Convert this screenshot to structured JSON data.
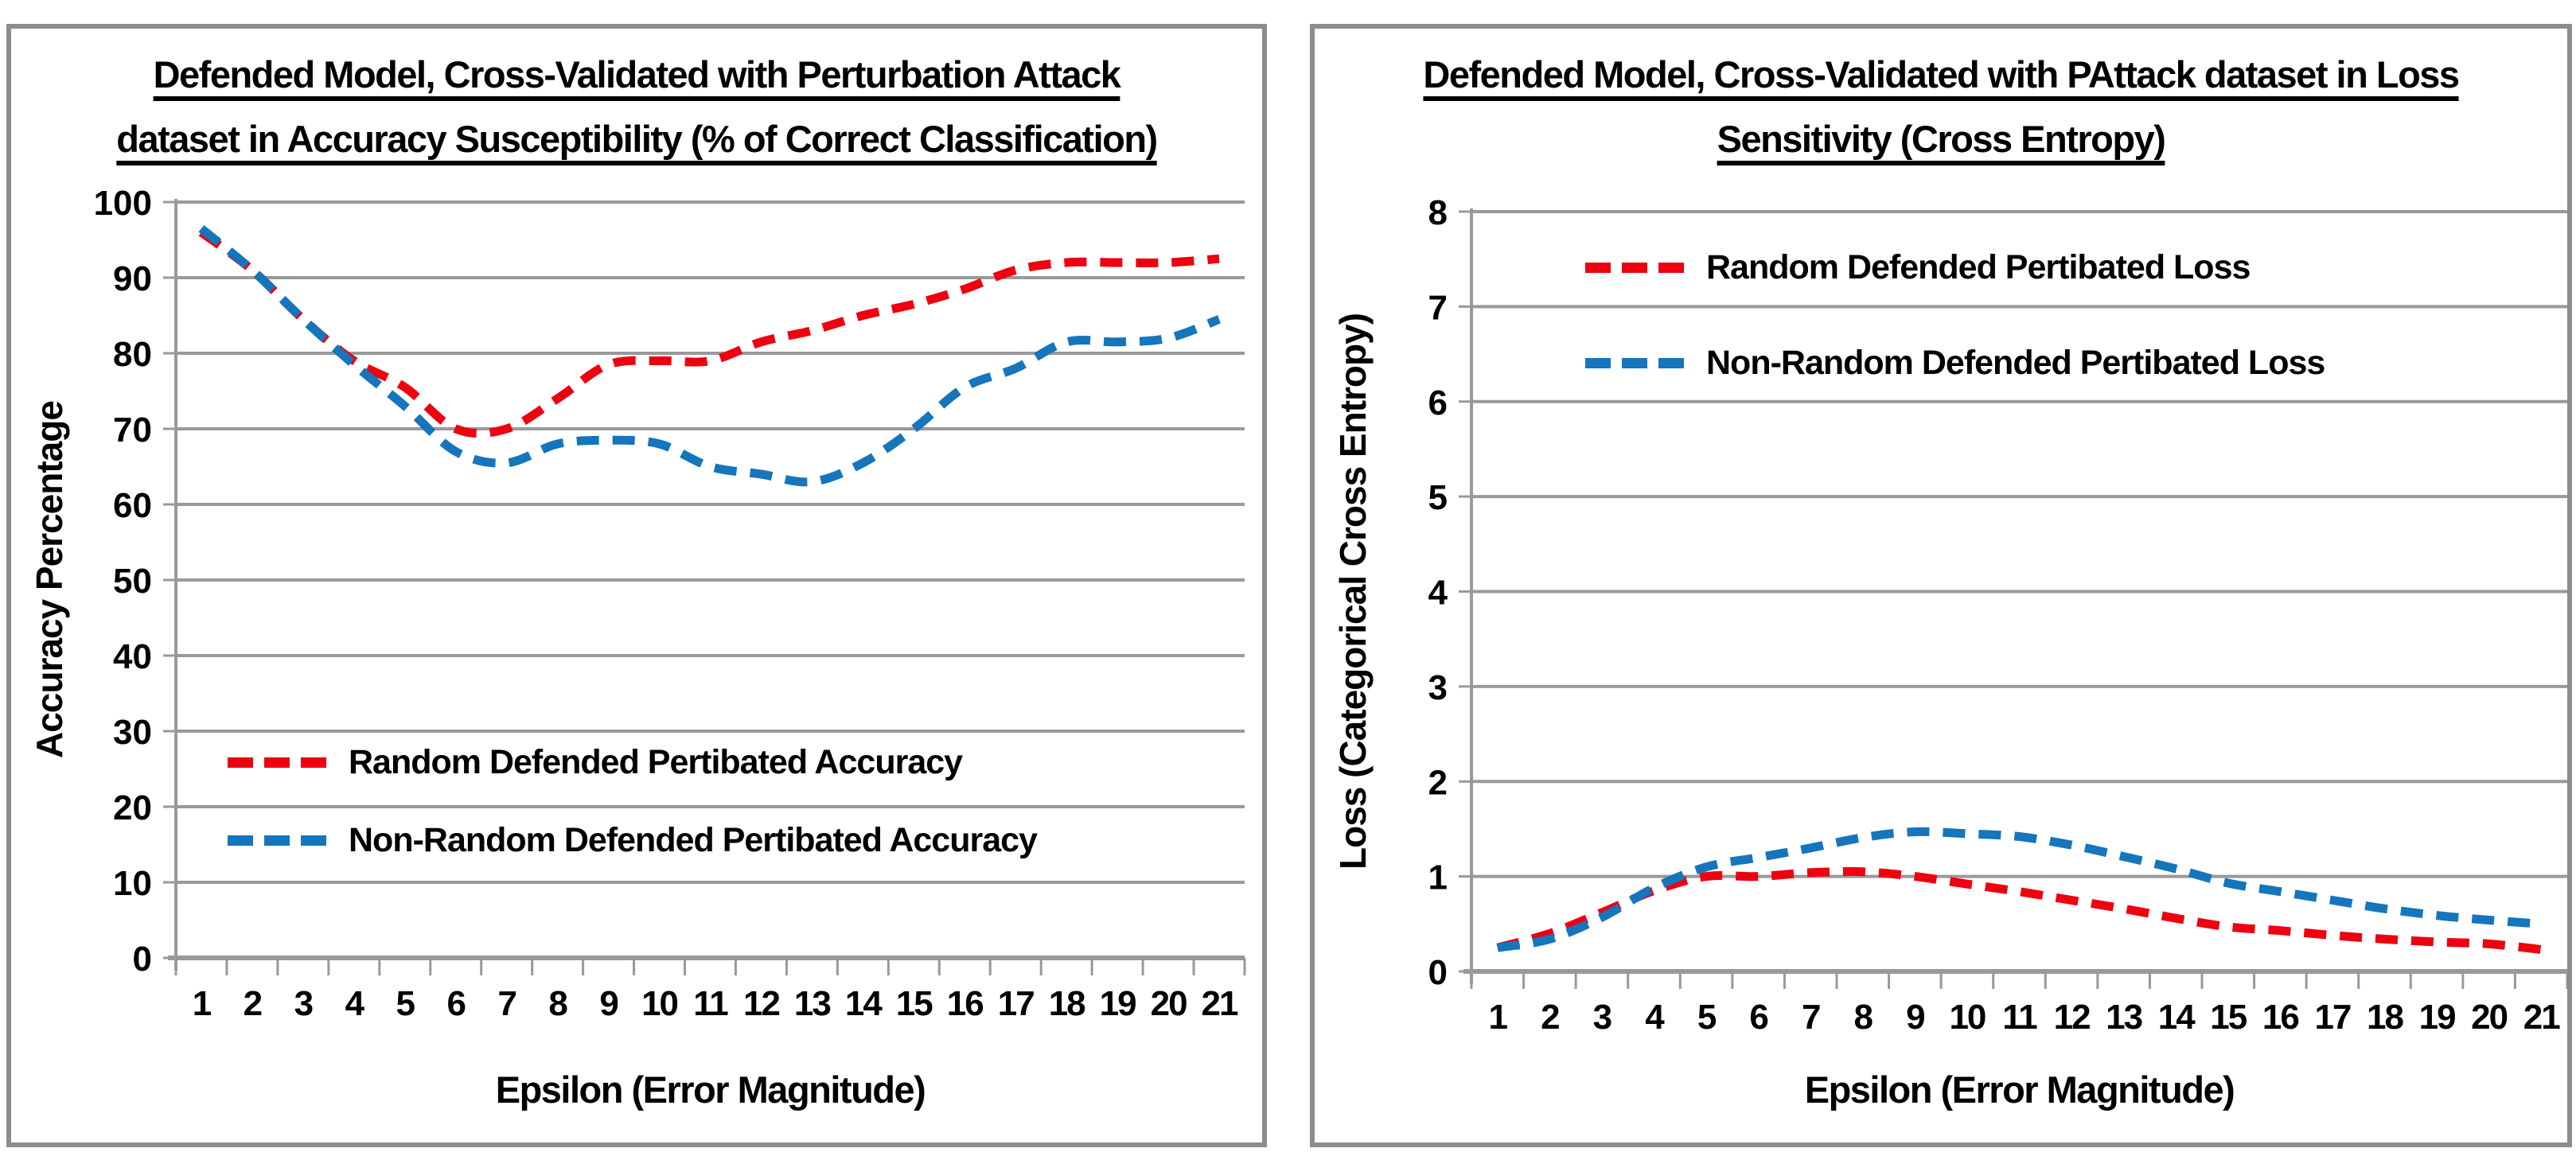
{
  "styles": {
    "grid_color": "#999999",
    "axis_color": "#999999",
    "border_color": "#8c8c8c",
    "red": "#ee0011",
    "blue": "#1575bd",
    "text_color": "#000000"
  },
  "chart_data": [
    {
      "type": "line",
      "title_lines": [
        "Defended Model, Cross-Validated with Perturbation Attack",
        "dataset in Accuracy Susceptibility (% of Correct Classification)"
      ],
      "ylabel": "Accuracy Percentage",
      "xlabel": "Epsilon (Error Magnitude)",
      "x": [
        1,
        2,
        3,
        4,
        5,
        6,
        7,
        8,
        9,
        10,
        11,
        12,
        13,
        14,
        15,
        16,
        17,
        18,
        19,
        20,
        21
      ],
      "ylim": [
        0,
        100
      ],
      "ystep": 10,
      "grid": "horizontal",
      "legend_position": "inside-lower-left",
      "line_style": "dashed-smooth",
      "series": [
        {
          "name": "Random Defended Pertibated Accuracy",
          "color": "#ee0011",
          "values": [
            96,
            91,
            84.5,
            79,
            75.5,
            70,
            70,
            74,
            78.5,
            79,
            79,
            81.5,
            83,
            85,
            86.5,
            88.5,
            91,
            92,
            92,
            92,
            92.5
          ]
        },
        {
          "name": "Non-Random Defended Pertibated Accuracy",
          "color": "#1575bd",
          "values": [
            96.5,
            91,
            84.5,
            78.5,
            73,
            67,
            65.5,
            68,
            68.5,
            68,
            65,
            64,
            63,
            65.5,
            70,
            75.5,
            78,
            81.5,
            81.5,
            82,
            84.5
          ]
        }
      ]
    },
    {
      "type": "line",
      "title_lines": [
        "Defended Model, Cross-Validated with PAttack dataset in Loss",
        "Sensitivity (Cross Entropy)"
      ],
      "ylabel": "Loss (Categorical Cross Entropy)",
      "xlabel": "Epsilon (Error Magnitude)",
      "x": [
        1,
        2,
        3,
        4,
        5,
        6,
        7,
        8,
        9,
        10,
        11,
        12,
        13,
        14,
        15,
        16,
        17,
        18,
        19,
        20,
        21
      ],
      "ylim": [
        0,
        8
      ],
      "ystep": 1,
      "grid": "horizontal",
      "legend_position": "inside-upper-left",
      "line_style": "dashed-smooth",
      "series": [
        {
          "name": "Random Defended Pertibated Loss",
          "color": "#ee0011",
          "values": [
            0.25,
            0.4,
            0.62,
            0.85,
            1.0,
            1.0,
            1.04,
            1.05,
            1.0,
            0.92,
            0.84,
            0.75,
            0.66,
            0.56,
            0.47,
            0.43,
            0.38,
            0.34,
            0.31,
            0.29,
            0.23
          ]
        },
        {
          "name": "Non-Random Defended Pertibated Loss",
          "color": "#1575bd",
          "values": [
            0.25,
            0.34,
            0.57,
            0.88,
            1.1,
            1.2,
            1.3,
            1.41,
            1.47,
            1.45,
            1.42,
            1.33,
            1.21,
            1.08,
            0.93,
            0.84,
            0.75,
            0.66,
            0.59,
            0.54,
            0.5
          ]
        }
      ]
    }
  ]
}
